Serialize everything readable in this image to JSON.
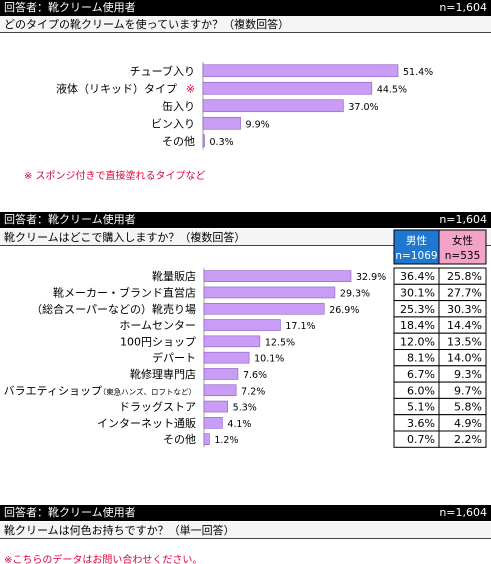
{
  "sections": [
    {
      "respondents": "回答者：靴クリーム使用者",
      "n": "n=1,604",
      "question": "どのタイプの靴クリームを使っていますか？（複数回答）",
      "note": "※ スポンジ付きで直接塗れるタイプなど"
    },
    {
      "respondents": "回答者：靴クリーム使用者",
      "n": "n=1,604",
      "question": "靴クリームはどこで購入しますか？（複数回答）"
    },
    {
      "respondents": "回答者：靴クリーム使用者",
      "n": "n=1,604",
      "question": "靴クリームは何色お持ちですか？（単一回答）",
      "note": "※こちらのデータはお問い合わせください。"
    }
  ],
  "bar_color": "#c99cf5",
  "chart_data": [
    {
      "type": "bar",
      "orientation": "horizontal",
      "categories": [
        "チューブ入り",
        "液体（リキッド）タイプ",
        "缶入り",
        "ビン入り",
        "その他"
      ],
      "category_marks": [
        "",
        "※",
        "",
        "",
        ""
      ],
      "values": [
        51.4,
        44.5,
        37.0,
        9.9,
        0.3
      ],
      "value_labels": [
        "51.4%",
        "44.5%",
        "37.0%",
        "9.9%",
        "0.3%"
      ],
      "xlim": [
        0,
        60
      ]
    },
    {
      "type": "bar",
      "orientation": "horizontal",
      "categories": [
        "靴量販店",
        "靴メーカー・ブランド直営店",
        "（総合スーパーなどの）靴売り場",
        "ホームセンター",
        "100円ショップ",
        "デパート",
        "靴修理専門店",
        "バラエティショップ",
        "ドラッグストア",
        "インターネット通販",
        "その他"
      ],
      "category_notes": [
        "",
        "",
        "",
        "",
        "",
        "",
        "",
        "（東急ハンズ、ロフトなど）",
        "",
        "",
        ""
      ],
      "values": [
        32.9,
        29.3,
        26.9,
        17.1,
        12.5,
        10.1,
        7.6,
        7.2,
        5.3,
        4.1,
        1.2
      ],
      "value_labels": [
        "32.9%",
        "29.3%",
        "26.9%",
        "17.1%",
        "12.5%",
        "10.1%",
        "7.6%",
        "7.2%",
        "5.3%",
        "4.1%",
        "1.2%"
      ],
      "xlim": [
        0,
        60
      ],
      "table": {
        "columns": [
          {
            "name": "男性",
            "n": "n=1069",
            "color": "#1e78d0",
            "values": [
              "36.4%",
              "30.1%",
              "25.3%",
              "18.4%",
              "12.0%",
              "8.1%",
              "6.7%",
              "6.0%",
              "5.1%",
              "3.6%",
              "0.7%"
            ]
          },
          {
            "name": "女性",
            "n": "n=535",
            "color": "#f4a3c8",
            "values": [
              "25.8%",
              "27.7%",
              "30.3%",
              "14.4%",
              "13.5%",
              "14.0%",
              "9.3%",
              "9.7%",
              "5.8%",
              "4.9%",
              "2.2%"
            ]
          }
        ]
      }
    }
  ]
}
